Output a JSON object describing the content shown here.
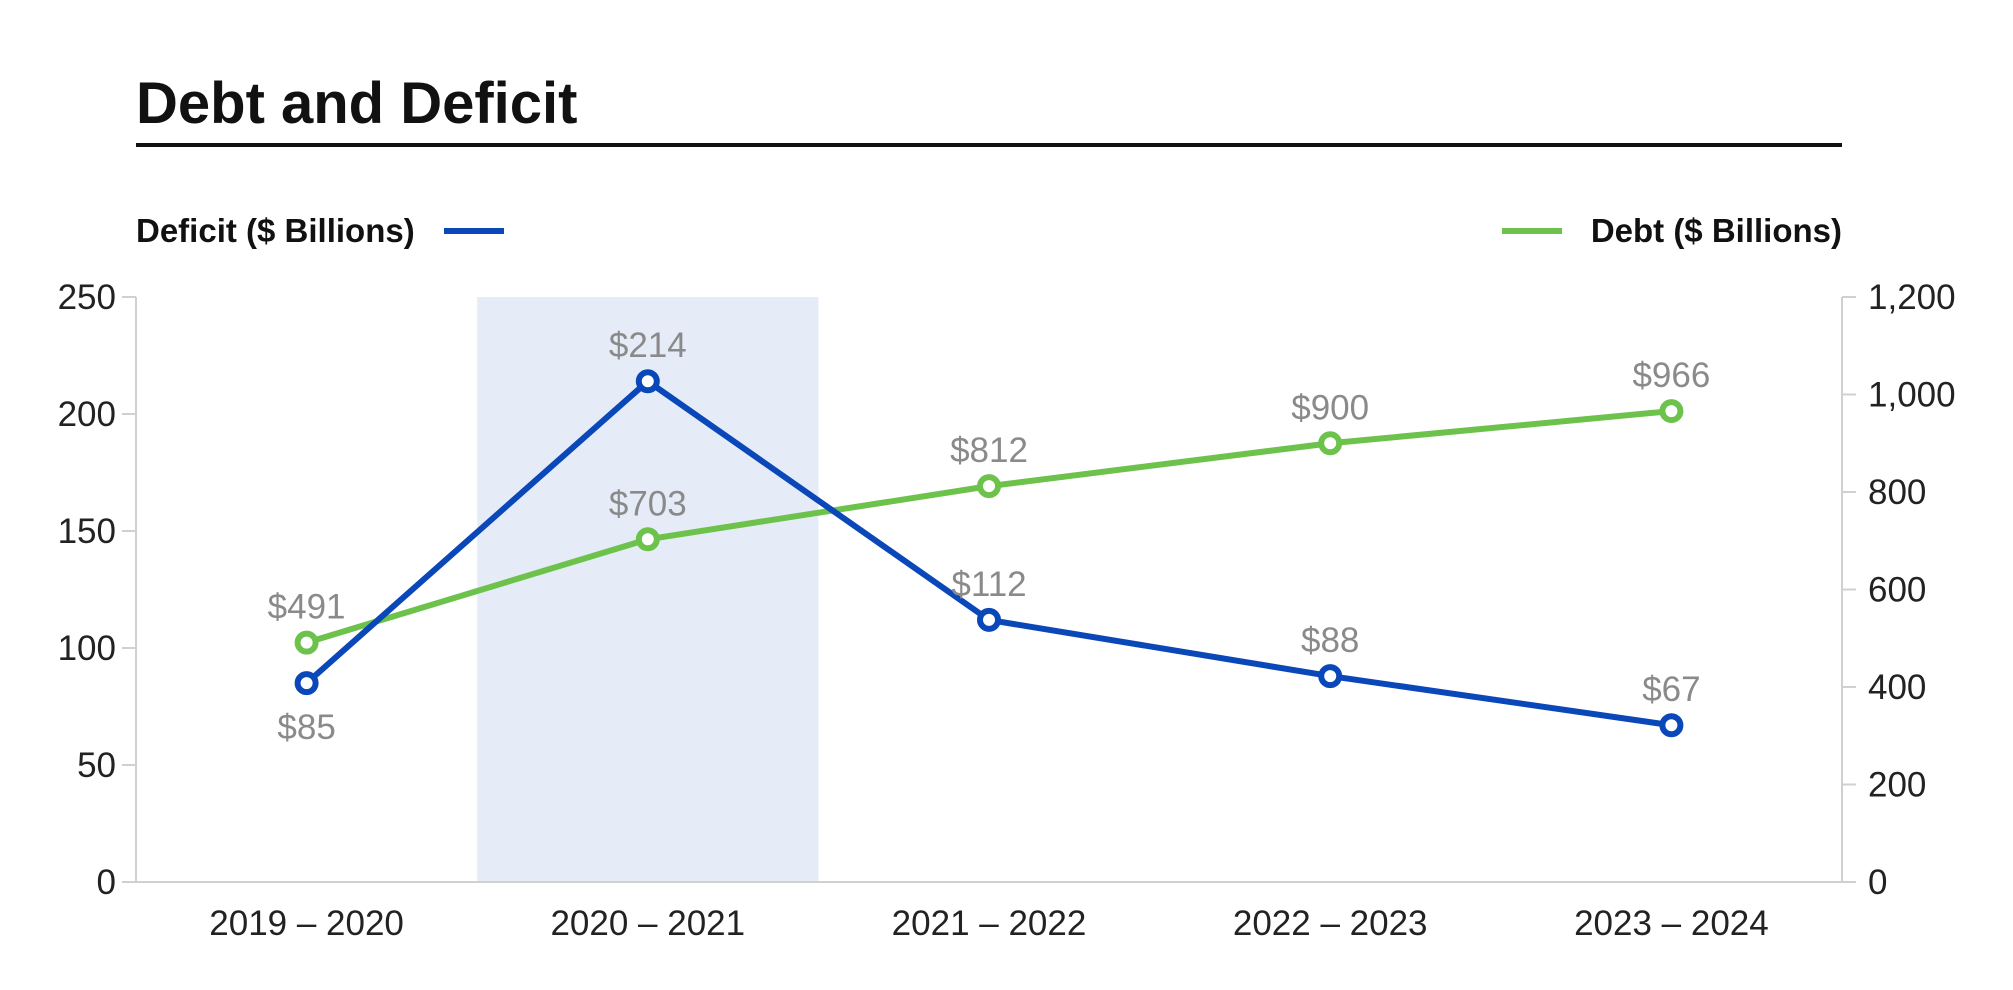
{
  "chart_data": {
    "type": "line",
    "title": "Debt and Deficit",
    "categories": [
      "2019 – 2020",
      "2020 – 2021",
      "2021 – 2022",
      "2022 – 2023",
      "2023 – 2024"
    ],
    "highlighted_category": "2020 – 2021",
    "highlight_color": "#e6ecf7",
    "grid": false,
    "legend": {
      "left": "Deficit ($ Billions)",
      "right": "Debt ($ Billions)"
    },
    "axes": {
      "y_left": {
        "range": [
          0,
          250
        ],
        "ticks": [
          0,
          50,
          100,
          150,
          200,
          250
        ],
        "tick_labels": [
          "0",
          "50",
          "100",
          "150",
          "200",
          "250"
        ]
      },
      "y_right": {
        "range": [
          0,
          1200
        ],
        "ticks": [
          0,
          200,
          400,
          600,
          800,
          1000,
          1200
        ],
        "tick_labels": [
          "0",
          "200",
          "400",
          "600",
          "800",
          "1,000",
          "1,200"
        ]
      }
    },
    "series": [
      {
        "name": "Deficit ($ Billions)",
        "axis": "left",
        "color": "#0a47b8",
        "values": [
          85,
          214,
          112,
          88,
          67
        ],
        "labels": [
          "$85",
          "$214",
          "$112",
          "$88",
          "$67"
        ],
        "label_positions": [
          "below",
          "above",
          "above",
          "above",
          "above"
        ]
      },
      {
        "name": "Debt ($ Billions)",
        "axis": "right",
        "color": "#6cc24a",
        "values": [
          491,
          703,
          812,
          900,
          966
        ],
        "labels": [
          "$491",
          "$703",
          "$812",
          "$900",
          "$966"
        ],
        "label_positions": [
          "above",
          "above",
          "above",
          "above",
          "above"
        ]
      }
    ]
  }
}
